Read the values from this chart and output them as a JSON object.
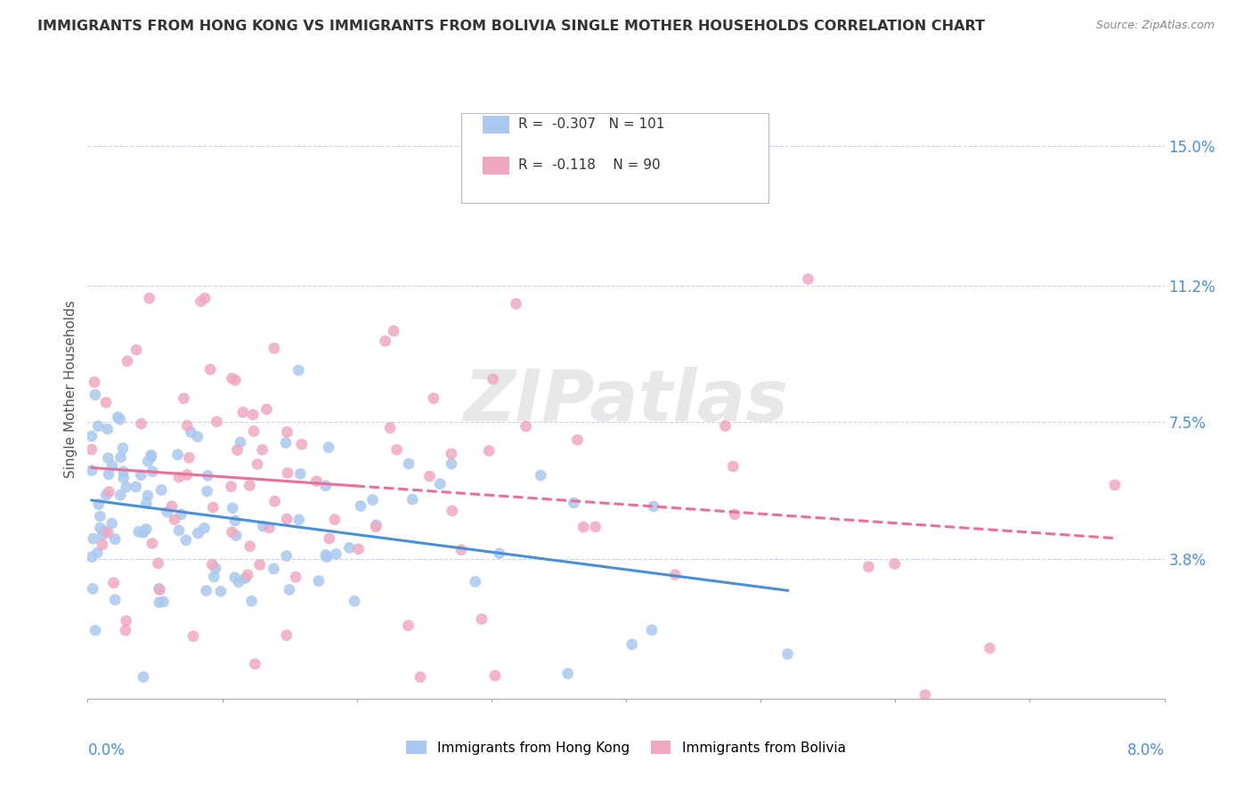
{
  "title": "IMMIGRANTS FROM HONG KONG VS IMMIGRANTS FROM BOLIVIA SINGLE MOTHER HOUSEHOLDS CORRELATION CHART",
  "source": "Source: ZipAtlas.com",
  "ylabel_label": "Single Mother Households",
  "y_ticks": [
    0.038,
    0.075,
    0.112,
    0.15
  ],
  "y_tick_labels": [
    "3.8%",
    "7.5%",
    "11.2%",
    "15.0%"
  ],
  "x_range": [
    0.0,
    0.08
  ],
  "y_range": [
    0.0,
    0.168
  ],
  "series_hk": {
    "label": "Immigrants from Hong Kong",
    "color": "#aac8f0",
    "R": -0.307,
    "N": 101,
    "line_color": "#4a90d9",
    "line_style": "solid"
  },
  "series_bo": {
    "label": "Immigrants from Bolivia",
    "color": "#f0a8c0",
    "R": -0.118,
    "N": 90,
    "line_color": "#e8709a",
    "line_style": "solid"
  },
  "watermark": "ZIPatlas",
  "background_color": "#ffffff",
  "grid_color": "#c8d4e8"
}
